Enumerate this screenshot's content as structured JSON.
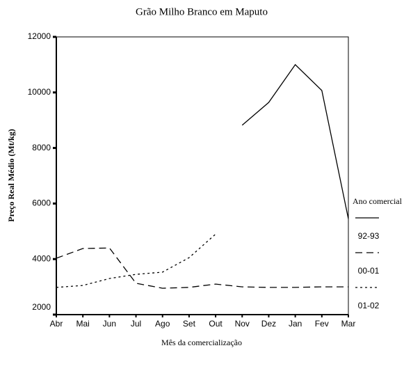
{
  "chart_data": {
    "type": "line",
    "title": "Grão Milho Branco em Maputo",
    "x_label": "Mês da comercialização",
    "y_label": "Preço Real Médio (Mt/kg)",
    "legend_title": "Ano comercial",
    "legend": "right",
    "categories": [
      "Abr",
      "Mai",
      "Jun",
      "Jul",
      "Ago",
      "Set",
      "Out",
      "Nov",
      "Dez",
      "Jan",
      "Fev",
      "Mar"
    ],
    "series": [
      {
        "name": "92-93",
        "color": "#000000",
        "dash": "solid",
        "values": [
          null,
          null,
          null,
          null,
          null,
          null,
          null,
          8820,
          9640,
          11000,
          10070,
          5450
        ]
      },
      {
        "name": "00-01",
        "color": "#000000",
        "dash": "dashed",
        "values": [
          4030,
          4380,
          4400,
          3130,
          2950,
          2980,
          3100,
          3000,
          2980,
          2980,
          3000,
          3000
        ]
      },
      {
        "name": "01-02",
        "color": "#000000",
        "dash": "dotted",
        "values": [
          2980,
          3050,
          3300,
          3450,
          3530,
          4050,
          4900,
          null,
          null,
          null,
          null,
          null
        ]
      }
    ],
    "ylim": [
      2000,
      12000
    ],
    "yticks": [
      2000,
      4000,
      6000,
      8000,
      10000,
      12000
    ]
  }
}
